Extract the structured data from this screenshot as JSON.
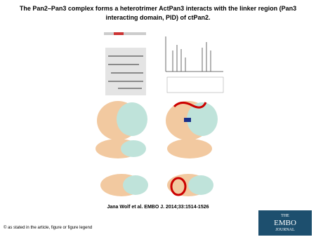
{
  "slide": {
    "title": "The Pan2–Pan3 complex forms a heterotrimer ActPan3 interacts with the linker region (Pan3 interacting domain, PID) of ctPan2.",
    "citation": "Jana Wolf et al. EMBO J. 2014;33:1514-1526",
    "footer": "© as stated in the article, figure or figure legend",
    "logo": {
      "line1": "THE",
      "line2": "EMBO",
      "line3": "JOURNAL"
    }
  }
}
